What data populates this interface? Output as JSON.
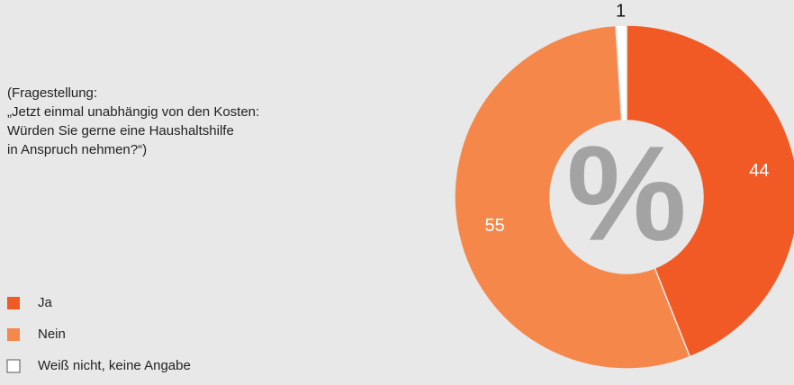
{
  "chart_data": {
    "type": "pie",
    "question_lines": [
      "(Fragestellung:",
      "„Jetzt einmal unabhängig von den Kosten:",
      "Würden Sie gerne eine Haushaltshilfe",
      "in Anspruch nehmen?“)"
    ],
    "center_label": "%",
    "categories": [
      "Ja",
      "Nein",
      "Weiß nicht, keine Angabe"
    ],
    "values": [
      44,
      55,
      1
    ],
    "colors": [
      "#f15a24",
      "#f5874a",
      "#ffffff"
    ],
    "legend": "bottom-left"
  }
}
